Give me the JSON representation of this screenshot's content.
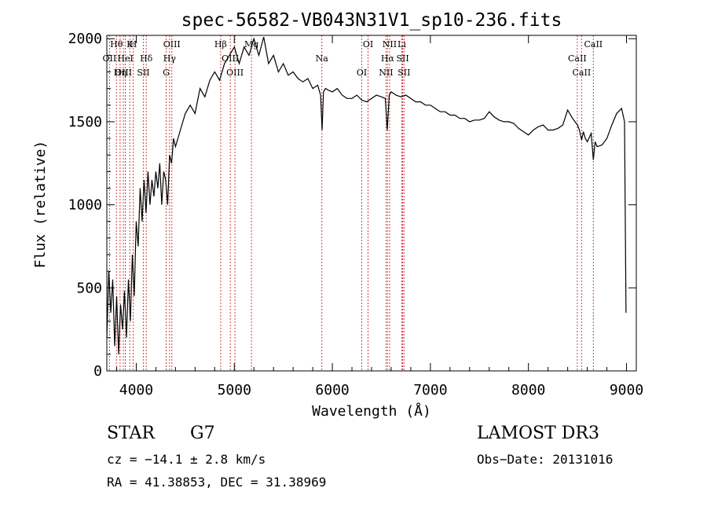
{
  "chart_data": {
    "type": "line",
    "title": "spec-56582-VB043N31V1_sp10-236.fits",
    "xlabel": "Wavelength (Å)",
    "ylabel": "Flux (relative)",
    "xlim": [
      3700,
      9100
    ],
    "ylim": [
      0,
      2020
    ],
    "xticks": [
      4000,
      5000,
      6000,
      7000,
      8000,
      9000
    ],
    "yticks": [
      0,
      500,
      1000,
      1500,
      2000
    ],
    "grid": false,
    "series": [
      {
        "x": [
          3700,
          3720,
          3740,
          3760,
          3780,
          3800,
          3820,
          3840,
          3860,
          3880,
          3900,
          3920,
          3940,
          3960,
          3980,
          4000,
          4020,
          4040,
          4060,
          4080,
          4100,
          4120,
          4140,
          4160,
          4180,
          4200,
          4220,
          4240,
          4260,
          4280,
          4300,
          4320,
          4340,
          4360,
          4380,
          4400,
          4450,
          4500,
          4550,
          4600,
          4650,
          4700,
          4750,
          4800,
          4850,
          4900,
          4950,
          5000,
          5050,
          5100,
          5150,
          5200,
          5250,
          5300,
          5350,
          5400,
          5450,
          5500,
          5550,
          5600,
          5650,
          5700,
          5750,
          5800,
          5850,
          5880,
          5895,
          5910,
          5930,
          5960,
          6000,
          6050,
          6100,
          6150,
          6200,
          6250,
          6300,
          6350,
          6400,
          6450,
          6500,
          6540,
          6560,
          6580,
          6600,
          6650,
          6700,
          6750,
          6800,
          6850,
          6900,
          6950,
          7000,
          7050,
          7100,
          7150,
          7200,
          7250,
          7300,
          7350,
          7400,
          7450,
          7500,
          7550,
          7600,
          7650,
          7700,
          7750,
          7800,
          7850,
          7900,
          7950,
          8000,
          8050,
          8100,
          8150,
          8200,
          8250,
          8300,
          8350,
          8400,
          8450,
          8500,
          8520,
          8542,
          8560,
          8580,
          8600,
          8640,
          8662,
          8680,
          8700,
          8750,
          8800,
          8850,
          8900,
          8950,
          8980,
          8995
        ],
        "y": [
          200,
          600,
          350,
          550,
          150,
          450,
          100,
          400,
          250,
          480,
          200,
          550,
          300,
          700,
          450,
          900,
          750,
          1100,
          900,
          1150,
          950,
          1200,
          1000,
          1150,
          1050,
          1200,
          1100,
          1250,
          1000,
          1200,
          1150,
          1000,
          1300,
          1250,
          1400,
          1350,
          1450,
          1550,
          1600,
          1550,
          1700,
          1650,
          1750,
          1800,
          1750,
          1850,
          1900,
          1950,
          1850,
          1950,
          1900,
          2000,
          1900,
          2010,
          1850,
          1900,
          1800,
          1850,
          1780,
          1800,
          1760,
          1740,
          1760,
          1700,
          1720,
          1660,
          1450,
          1680,
          1700,
          1690,
          1680,
          1700,
          1660,
          1640,
          1640,
          1660,
          1630,
          1620,
          1640,
          1660,
          1650,
          1640,
          1450,
          1660,
          1680,
          1660,
          1650,
          1660,
          1640,
          1620,
          1620,
          1600,
          1600,
          1580,
          1560,
          1560,
          1540,
          1540,
          1520,
          1520,
          1500,
          1510,
          1510,
          1520,
          1560,
          1530,
          1510,
          1500,
          1500,
          1490,
          1460,
          1440,
          1420,
          1450,
          1470,
          1480,
          1450,
          1450,
          1460,
          1480,
          1570,
          1520,
          1480,
          1450,
          1390,
          1440,
          1400,
          1380,
          1430,
          1270,
          1380,
          1350,
          1360,
          1400,
          1480,
          1550,
          1580,
          1500,
          350
        ]
      }
    ],
    "lines": [
      {
        "label": "Hθ",
        "x": 3798
      },
      {
        "label": "OII",
        "x": 3727
      },
      {
        "label": "OIII",
        "x": 3869
      },
      {
        "label": "K",
        "x": 3934
      },
      {
        "label": "HeI",
        "x": 3889
      },
      {
        "label": "Hη",
        "x": 3835
      },
      {
        "label": "H",
        "x": 3969
      },
      {
        "label": "Hδ",
        "x": 4102
      },
      {
        "label": "SII",
        "x": 4072
      },
      {
        "label": "OIII",
        "x": 4363
      },
      {
        "label": "Hγ",
        "x": 4340
      },
      {
        "label": "G",
        "x": 4305
      },
      {
        "label": "Hβ",
        "x": 4861
      },
      {
        "label": "OIII",
        "x": 4959
      },
      {
        "label": "OIII",
        "x": 5007
      },
      {
        "label": "Mg",
        "x": 5175
      },
      {
        "label": "Na",
        "x": 5893
      },
      {
        "label": "OI",
        "x": 6300
      },
      {
        "label": "OI",
        "x": 6364
      },
      {
        "label": "Hα",
        "x": 6563
      },
      {
        "label": "NII",
        "x": 6548
      },
      {
        "label": "NII",
        "x": 6584
      },
      {
        "label": "SII",
        "x": 6717
      },
      {
        "label": "SII",
        "x": 6731
      },
      {
        "label": "Li",
        "x": 6708
      },
      {
        "label": "CaII",
        "x": 8498
      },
      {
        "label": "CaII",
        "x": 8542
      },
      {
        "label": "CaII",
        "x": 8662
      }
    ]
  },
  "info": {
    "class": "STAR",
    "subclass": "G7",
    "survey": "LAMOST DR3",
    "cz": "cz = −14.1 ± 2.8 km/s",
    "obsdate": "Obs−Date: 20131016",
    "radec": "RA =  41.38853, DEC =  31.38969"
  }
}
